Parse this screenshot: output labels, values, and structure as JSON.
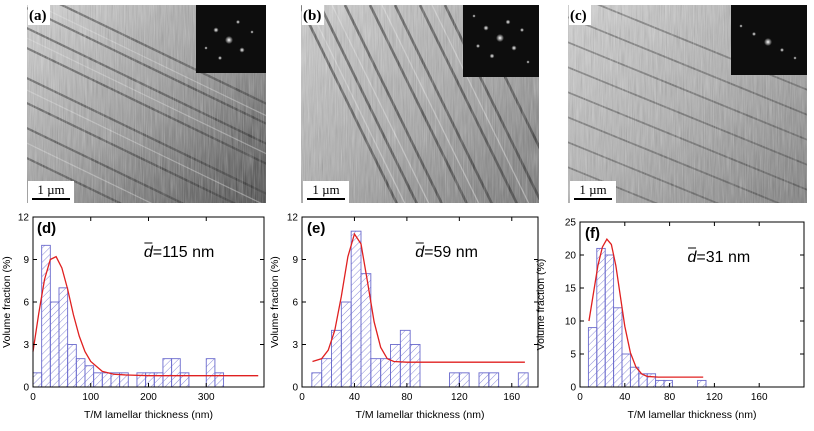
{
  "figure": {
    "micrographs": [
      {
        "tag": "(a)",
        "scale_bar_label": "1 µm",
        "inset": "diffraction-pattern",
        "image_description": "TEM bright-field micrograph with parallel lamellae"
      },
      {
        "tag": "(b)",
        "scale_bar_label": "1 µm",
        "inset": "diffraction-pattern",
        "image_description": "TEM bright-field micrograph with parallel lamellae"
      },
      {
        "tag": "(c)",
        "scale_bar_label": "1 µm",
        "inset": "diffraction-pattern",
        "image_description": "TEM bright-field micrograph with parallel lamellae"
      }
    ],
    "colors": {
      "bar_edge": "#6a6acd",
      "hatch": "#8a8ad8",
      "fit_curve": "#e02020"
    }
  },
  "chart_data": [
    {
      "type": "bar",
      "panel_tag": "(d)",
      "annotation": "d=115 nm",
      "annotation_symbol": "d",
      "annotation_text": "=115 nm",
      "xlabel": "T/M lamellar thickness (nm)",
      "ylabel": "Volume fraction (%)",
      "xlim": [
        0,
        400
      ],
      "ylim": [
        0,
        12
      ],
      "xticks": [
        0,
        100,
        200,
        300
      ],
      "yticks": [
        0,
        3,
        6,
        9,
        12
      ],
      "bin_width": 15,
      "bins": [
        {
          "x": 0,
          "y": 1
        },
        {
          "x": 15,
          "y": 10
        },
        {
          "x": 30,
          "y": 6
        },
        {
          "x": 45,
          "y": 7
        },
        {
          "x": 60,
          "y": 3
        },
        {
          "x": 75,
          "y": 2
        },
        {
          "x": 90,
          "y": 1.5
        },
        {
          "x": 105,
          "y": 1
        },
        {
          "x": 120,
          "y": 1
        },
        {
          "x": 135,
          "y": 1
        },
        {
          "x": 150,
          "y": 1
        },
        {
          "x": 165,
          "y": 0
        },
        {
          "x": 180,
          "y": 1
        },
        {
          "x": 195,
          "y": 1
        },
        {
          "x": 210,
          "y": 1
        },
        {
          "x": 225,
          "y": 2
        },
        {
          "x": 240,
          "y": 2
        },
        {
          "x": 255,
          "y": 1
        },
        {
          "x": 270,
          "y": 0
        },
        {
          "x": 285,
          "y": 0
        },
        {
          "x": 300,
          "y": 2
        },
        {
          "x": 315,
          "y": 1
        }
      ],
      "fit": {
        "name": "fit",
        "x": [
          0,
          10,
          20,
          30,
          40,
          50,
          60,
          70,
          80,
          90,
          100,
          120,
          140,
          160,
          200,
          300,
          390
        ],
        "y": [
          2.5,
          5.2,
          7.6,
          9.0,
          9.2,
          8.4,
          6.9,
          5.1,
          3.6,
          2.5,
          1.8,
          1.1,
          0.9,
          0.85,
          0.8,
          0.8,
          0.8
        ]
      }
    },
    {
      "type": "bar",
      "panel_tag": "(e)",
      "annotation": "d=59 nm",
      "annotation_symbol": "d",
      "annotation_text": "=59 nm",
      "xlabel": "T/M lamellar thickness (nm)",
      "ylabel": "Volume fraction (%)",
      "xlim": [
        0,
        180
      ],
      "ylim": [
        0,
        12
      ],
      "xticks": [
        0,
        40,
        80,
        120,
        160
      ],
      "yticks": [
        0,
        3,
        6,
        9,
        12
      ],
      "bin_width": 7.5,
      "bins": [
        {
          "x": 7.5,
          "y": 1
        },
        {
          "x": 15,
          "y": 2
        },
        {
          "x": 22.5,
          "y": 4
        },
        {
          "x": 30,
          "y": 6
        },
        {
          "x": 37.5,
          "y": 11
        },
        {
          "x": 45,
          "y": 8
        },
        {
          "x": 52.5,
          "y": 2
        },
        {
          "x": 60,
          "y": 2
        },
        {
          "x": 67.5,
          "y": 3
        },
        {
          "x": 75,
          "y": 4
        },
        {
          "x": 82.5,
          "y": 3
        },
        {
          "x": 90,
          "y": 0
        },
        {
          "x": 97.5,
          "y": 0
        },
        {
          "x": 105,
          "y": 0
        },
        {
          "x": 112.5,
          "y": 1
        },
        {
          "x": 120,
          "y": 1
        },
        {
          "x": 127.5,
          "y": 0
        },
        {
          "x": 135,
          "y": 1
        },
        {
          "x": 142.5,
          "y": 1
        },
        {
          "x": 150,
          "y": 0
        },
        {
          "x": 157.5,
          "y": 0
        },
        {
          "x": 165,
          "y": 1
        }
      ],
      "fit": {
        "name": "fit",
        "x": [
          8,
          15,
          20,
          25,
          30,
          35,
          40,
          45,
          50,
          55,
          60,
          65,
          70,
          80,
          100,
          140,
          170
        ],
        "y": [
          1.8,
          2.0,
          2.6,
          4.0,
          6.4,
          9.2,
          10.8,
          10.1,
          7.4,
          4.6,
          2.8,
          2.0,
          1.8,
          1.75,
          1.75,
          1.75,
          1.75
        ]
      }
    },
    {
      "type": "bar",
      "panel_tag": "(f)",
      "annotation": "d=31 nm",
      "annotation_symbol": "d",
      "annotation_text": "=31 nm",
      "xlabel": "T/M lamellar thickness (nm)",
      "ylabel": "Volume fraction (%)",
      "xlim": [
        0,
        200
      ],
      "ylim": [
        0,
        25
      ],
      "xticks": [
        0,
        40,
        80,
        120,
        160
      ],
      "yticks": [
        0,
        5,
        10,
        15,
        20,
        25
      ],
      "bin_width": 7.5,
      "bins": [
        {
          "x": 7.5,
          "y": 9
        },
        {
          "x": 15,
          "y": 21
        },
        {
          "x": 22.5,
          "y": 20
        },
        {
          "x": 30,
          "y": 12
        },
        {
          "x": 37.5,
          "y": 5
        },
        {
          "x": 45,
          "y": 3
        },
        {
          "x": 52.5,
          "y": 2
        },
        {
          "x": 60,
          "y": 2
        },
        {
          "x": 67.5,
          "y": 1
        },
        {
          "x": 75,
          "y": 1
        },
        {
          "x": 82.5,
          "y": 0
        },
        {
          "x": 90,
          "y": 0
        },
        {
          "x": 97.5,
          "y": 0
        },
        {
          "x": 105,
          "y": 1
        }
      ],
      "fit": {
        "name": "fit",
        "x": [
          8,
          12,
          16,
          20,
          24,
          28,
          32,
          36,
          40,
          45,
          50,
          55,
          60,
          70,
          90,
          110
        ],
        "y": [
          10,
          14.2,
          18.4,
          21.2,
          22.4,
          21.6,
          18.4,
          13.8,
          9.2,
          5.2,
          3.0,
          2.0,
          1.6,
          1.5,
          1.5,
          1.5
        ]
      }
    }
  ]
}
